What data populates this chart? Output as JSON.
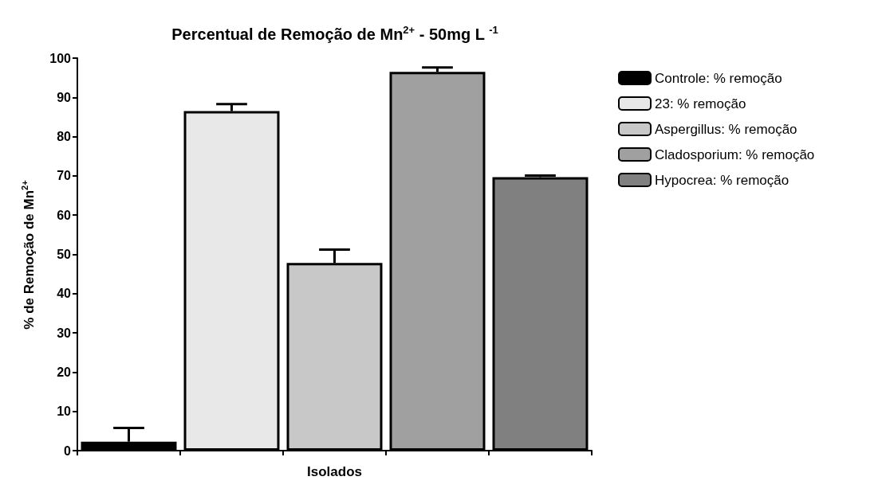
{
  "chart_data": {
    "type": "bar",
    "title": "Percentual de Remoção de Mn$^{2+}$ - 50mg L $^{-1}$",
    "xlabel": "Isolados",
    "ylabel": "% de Remoção de Mn$^{2+}$",
    "categories": [
      null,
      null,
      null,
      null,
      null
    ],
    "series": [
      {
        "name": "Controle: % remoção",
        "color": "#000000",
        "values": [
          2.3,
          null,
          null,
          null,
          null
        ],
        "errors": [
          [
            2.3,
            5.8
          ],
          null,
          null,
          null,
          null
        ]
      },
      {
        "name": "23: % remoção",
        "color": "#e8e8e8",
        "values": [
          null,
          86.5,
          null,
          null,
          null
        ],
        "errors": [
          null,
          [
            86.5,
            88.3
          ],
          null,
          null,
          null
        ]
      },
      {
        "name": "Aspergillus: % remoção",
        "color": "#c8c8c8",
        "values": [
          null,
          null,
          47.8,
          null,
          null
        ],
        "errors": [
          null,
          null,
          [
            47.8,
            51.2
          ],
          null,
          null
        ]
      },
      {
        "name": "Cladosporium: % remoção",
        "color": "#a0a0a0",
        "values": [
          null,
          null,
          null,
          96.5,
          null
        ],
        "errors": [
          null,
          null,
          null,
          [
            96.5,
            97.6
          ],
          null
        ]
      },
      {
        "name": "Hypocrea: % remoção",
        "color": "#808080",
        "values": [
          null,
          null,
          null,
          null,
          69.7
        ],
        "errors": [
          null,
          null,
          null,
          null,
          [
            69.7,
            70.1
          ]
        ]
      }
    ],
    "ylim": [
      0,
      100
    ],
    "yticks": [
      0,
      10,
      20,
      30,
      40,
      50,
      60,
      70,
      80,
      90,
      100
    ],
    "grid": false,
    "legend": "right",
    "tick_labels": "y"
  }
}
